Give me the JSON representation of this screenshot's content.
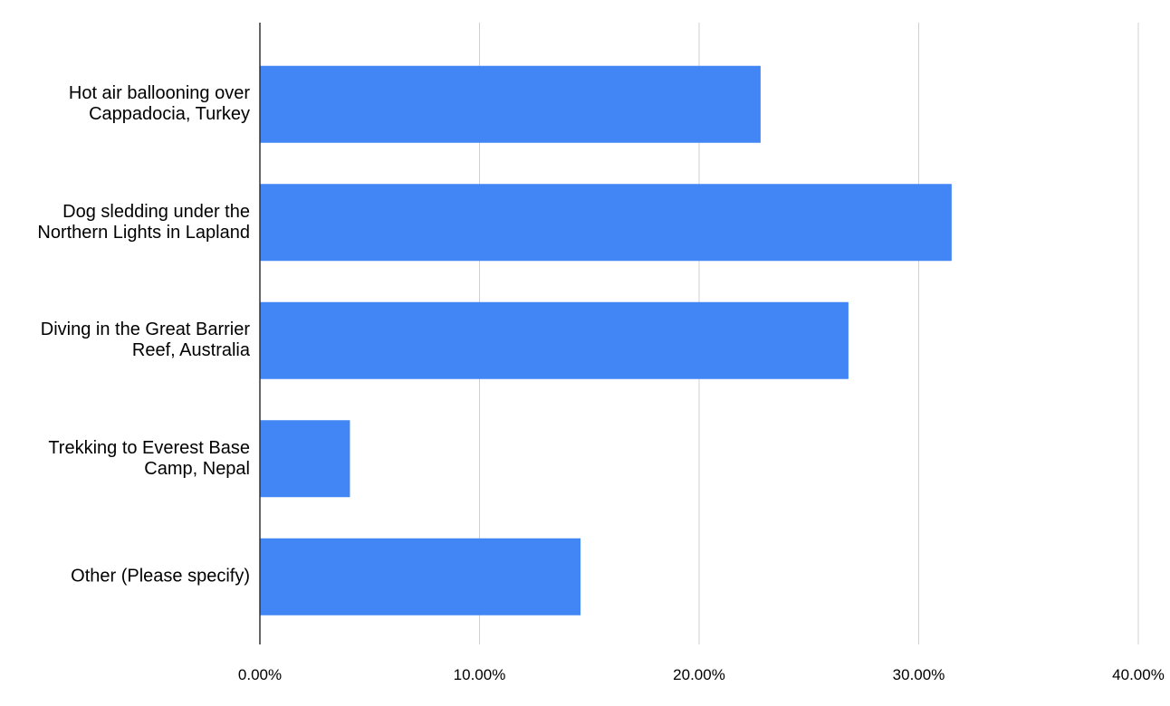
{
  "chart_data": {
    "type": "bar",
    "orientation": "horizontal",
    "categories": [
      "Hot air ballooning over Cappadocia, Turkey",
      "Dog sledding under the Northern Lights in Lapland",
      "Diving in the Great Barrier Reef, Australia",
      "Trekking to Everest Base Camp, Nepal",
      "Other (Please specify)"
    ],
    "values": [
      22.8,
      31.5,
      26.8,
      4.1,
      14.6
    ],
    "color": "#4285f4",
    "xlim": [
      0,
      40
    ],
    "xticks": [
      {
        "value": 0,
        "label": "0.00%"
      },
      {
        "value": 10,
        "label": "10.00%"
      },
      {
        "value": 20,
        "label": "20.00%"
      },
      {
        "value": 30,
        "label": "30.00%"
      },
      {
        "value": 40,
        "label": "40.00%"
      }
    ],
    "grid": true
  }
}
